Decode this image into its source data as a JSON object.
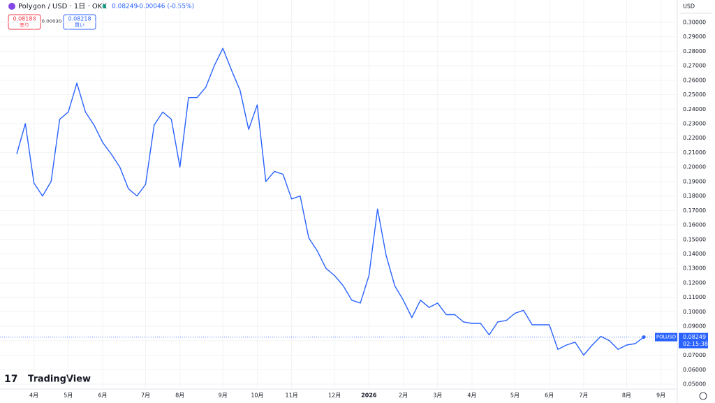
{
  "chart_data": {
    "type": "line",
    "header": {
      "symbol": "Polygon / USD · 1日 · OKX",
      "price": "0.08249",
      "change": "-0.00046 (-0.55%)",
      "sell": "0.08188",
      "sell_label": "売り",
      "spread": "0.00030",
      "buy": "0.08218",
      "buy_label": "買い"
    },
    "currency": "USD",
    "logo": "TradingView",
    "categories": [
      null,
      null,
      "4月",
      null,
      null,
      null,
      "5月",
      null,
      null,
      null,
      "6月",
      null,
      null,
      null,
      null,
      "7月",
      null,
      null,
      null,
      "8月",
      null,
      null,
      null,
      null,
      "9月",
      null,
      null,
      null,
      "10月",
      null,
      null,
      null,
      "11月",
      null,
      null,
      null,
      null,
      "12月",
      null,
      null,
      null,
      "2026",
      null,
      null,
      null,
      "2月",
      null,
      null,
      null,
      "3月",
      null,
      null,
      null,
      "4月",
      null,
      null,
      null,
      null,
      "5月",
      null,
      null,
      null,
      "6月",
      null,
      null,
      null,
      "7月",
      null,
      null,
      null,
      null,
      "8月",
      null,
      null,
      null,
      "9月"
    ],
    "series": [
      {
        "name": "POLUSD",
        "color": "#2962ff",
        "values": [
          0.209,
          0.23,
          0.189,
          0.18,
          0.19,
          0.233,
          0.238,
          0.258,
          0.238,
          0.229,
          0.217,
          0.209,
          0.2,
          0.185,
          0.18,
          0.188,
          0.229,
          0.238,
          0.233,
          0.2,
          0.248,
          0.248,
          0.255,
          0.27,
          0.282,
          0.267,
          0.253,
          0.226,
          0.243,
          0.19,
          0.197,
          0.195,
          0.178,
          0.18,
          0.151,
          0.142,
          0.13,
          0.125,
          0.118,
          0.108,
          0.106,
          0.125,
          0.171,
          0.139,
          0.118,
          0.108,
          0.096,
          0.108,
          0.103,
          0.106,
          0.098,
          0.098,
          0.093,
          0.092,
          0.092,
          0.084,
          0.093,
          0.094,
          0.099,
          0.101,
          0.091,
          0.091,
          0.091,
          0.074,
          0.077,
          0.079,
          0.07,
          0.077,
          0.083,
          0.08,
          0.074,
          0.077,
          0.078,
          0.08249,
          null,
          null
        ]
      }
    ],
    "last_price": {
      "symbol": "POLUSD",
      "price": 0.08249,
      "price_label": "0.08249",
      "countdown": "02:15:38"
    },
    "ylim": [
      0.0471,
      0.3048
    ],
    "yticks": [
      {
        "value": 0.05,
        "label": "0.05000"
      },
      {
        "value": 0.06,
        "label": "0.06000"
      },
      {
        "value": 0.07,
        "label": "0.07000"
      },
      {
        "value": 0.08,
        "label": "0.08000"
      },
      {
        "value": 0.09,
        "label": "0.09000"
      },
      {
        "value": 0.1,
        "label": "0.10000"
      },
      {
        "value": 0.11,
        "label": "0.11000"
      },
      {
        "value": 0.12,
        "label": "0.12000"
      },
      {
        "value": 0.13,
        "label": "0.13000"
      },
      {
        "value": 0.14,
        "label": "0.14000"
      },
      {
        "value": 0.15,
        "label": "0.15000"
      },
      {
        "value": 0.16,
        "label": "0.16000"
      },
      {
        "value": 0.17,
        "label": "0.17000"
      },
      {
        "value": 0.18,
        "label": "0.18000"
      },
      {
        "value": 0.19,
        "label": "0.19000"
      },
      {
        "value": 0.2,
        "label": "0.20000"
      },
      {
        "value": 0.21,
        "label": "0.21000"
      },
      {
        "value": 0.22,
        "label": "0.22000"
      },
      {
        "value": 0.23,
        "label": "0.23000"
      },
      {
        "value": 0.24,
        "label": "0.24000"
      },
      {
        "value": 0.25,
        "label": "0.25000"
      },
      {
        "value": 0.26,
        "label": "0.26000"
      },
      {
        "value": 0.27,
        "label": "0.27000"
      },
      {
        "value": 0.28,
        "label": "0.28000"
      },
      {
        "value": 0.29,
        "label": "0.29000"
      },
      {
        "value": 0.3,
        "label": "0.30000"
      }
    ],
    "grid": true
  }
}
